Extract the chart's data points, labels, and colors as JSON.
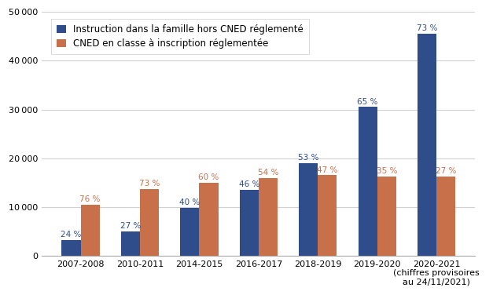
{
  "categories": [
    "2007-2008",
    "2010-2011",
    "2014-2015",
    "2016-2017",
    "2018-2019",
    "2019-2020",
    "2020-2021"
  ],
  "blue_values": [
    3300,
    5000,
    9800,
    13500,
    19000,
    30500,
    45500
  ],
  "orange_values": [
    10500,
    13700,
    15000,
    16000,
    16500,
    16200,
    16200
  ],
  "blue_pcts": [
    "24 %",
    "27 %",
    "40 %",
    "46 %",
    "53 %",
    "65 %",
    "73 %"
  ],
  "orange_pcts": [
    "76 %",
    "73 %",
    "60 %",
    "54 %",
    "47 %",
    "35 %",
    "27 %"
  ],
  "blue_color": "#2e4d8a",
  "orange_color": "#c8704a",
  "legend_blue": "Instruction dans la famille hors CNED réglementé",
  "legend_orange": "CNED en classe à inscription réglementée",
  "ylim": [
    0,
    50000
  ],
  "yticks": [
    0,
    10000,
    20000,
    30000,
    40000,
    50000
  ],
  "last_cat_extra": "(chiffres provisoires\nau 24/11/2021)",
  "pct_fontsize": 7.5,
  "tick_fontsize": 8.0,
  "legend_fontsize": 8.5,
  "background_color": "#ffffff",
  "grid_color": "#d0d0d0",
  "bar_width": 0.32
}
